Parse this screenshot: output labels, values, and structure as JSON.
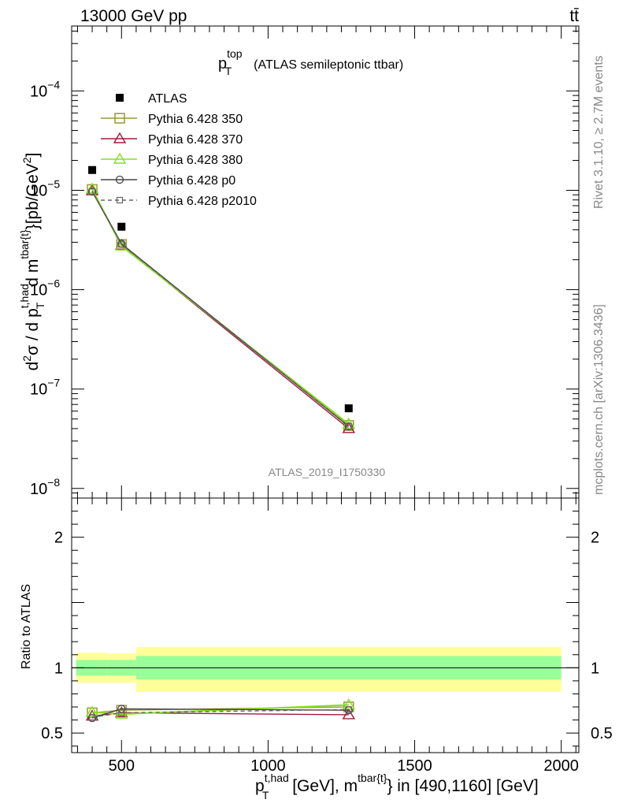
{
  "header": {
    "energy_label": "13000 GeV pp",
    "process_label": "tt̄"
  },
  "side": {
    "rivet": "Rivet 3.1.10, ≥ 2.7M events",
    "mcplots": "mcplots.cern.ch [arXiv:1306.3436]"
  },
  "analysis_id": "ATLAS_2019_I1750330",
  "colors": {
    "atlas": "#000000",
    "p350": "#999933",
    "p370": "#a01b39",
    "p380": "#86e01e",
    "p0": "#444444",
    "p2010": "#666666",
    "band_inner": "#99ff99",
    "band_outer": "#ffff99"
  },
  "chart_data": [
    {
      "type": "scatter",
      "panel": "main",
      "title": {
        "main": "p",
        "sup": "top",
        "sub": "T",
        "rest": "(ATLAS semileptonic ttbar)"
      },
      "ylabel": "d²σ / d p_T^{t,had} d m^{tbar{t}} [pb/GeV²]",
      "y_scale": "log",
      "xlim": [
        330,
        2060
      ],
      "ylim": [
        8e-09,
        0.00045
      ],
      "y_ticks": [
        {
          "label": "10",
          "exp": "−4",
          "value": 0.0001
        },
        {
          "label": "10",
          "exp": "−5",
          "value": 1e-05
        },
        {
          "label": "10",
          "exp": "−6",
          "value": 1e-06
        },
        {
          "label": "10",
          "exp": "−7",
          "value": 1e-07
        },
        {
          "label": "10",
          "exp": "−8",
          "value": 1e-08
        }
      ],
      "legend": {
        "placement": "top-left",
        "entries": [
          {
            "name": "ATLAS",
            "marker": "filled-square",
            "color_key": "atlas"
          },
          {
            "name": "Pythia 6.428 350",
            "marker": "open-square",
            "color_key": "p350"
          },
          {
            "name": "Pythia 6.428 370",
            "marker": "open-triangle",
            "color_key": "p370"
          },
          {
            "name": "Pythia 6.428 380",
            "marker": "open-triangle",
            "color_key": "p380"
          },
          {
            "name": "Pythia 6.428 p0",
            "marker": "open-circle",
            "color_key": "p0"
          },
          {
            "name": "Pythia 6.428 p2010",
            "marker": "open-square-small-dashed",
            "color_key": "p2010"
          }
        ]
      },
      "x": [
        400,
        500,
        1275
      ],
      "series": [
        {
          "name": "ATLAS",
          "values": [
            1.6e-05,
            4.3e-06,
            6.4e-08
          ]
        },
        {
          "name": "Pythia 6.428 350",
          "values": [
            1.02e-05,
            2.85e-06,
            4.3e-08
          ]
        },
        {
          "name": "Pythia 6.428 370",
          "values": [
            9.9e-06,
            2.8e-06,
            4e-08
          ]
        },
        {
          "name": "Pythia 6.428 380",
          "values": [
            1.03e-05,
            2.75e-06,
            4.45e-08
          ]
        },
        {
          "name": "Pythia 6.428 p0",
          "values": [
            9.7e-06,
            2.9e-06,
            4.2e-08
          ]
        },
        {
          "name": "Pythia 6.428 p2010",
          "values": [
            9.7e-06,
            2.85e-06,
            4.2e-08
          ]
        }
      ]
    },
    {
      "type": "line",
      "panel": "ratio",
      "ylabel": "Ratio to ATLAS",
      "xlabel": "p_T^{t,had} [GeV], m^{tbar{t}} in [490,1160] [GeV]",
      "xlim": [
        330,
        2060
      ],
      "ylim": [
        0.35,
        2.3
      ],
      "y_ticks": [
        {
          "label": "0.5",
          "value": 0.5
        },
        {
          "label": "1",
          "value": 1
        },
        {
          "label": "2",
          "value": 2
        }
      ],
      "x_ticks": [
        {
          "label": "500",
          "value": 500
        },
        {
          "label": "1000",
          "value": 1000
        },
        {
          "label": "1500",
          "value": 1500
        },
        {
          "label": "2000",
          "value": 2000
        }
      ],
      "bands": [
        {
          "x0": 345,
          "x1": 450,
          "inner": [
            0.94,
            1.06
          ],
          "outer": [
            0.885,
            1.115
          ]
        },
        {
          "x0": 450,
          "x1": 550,
          "inner": [
            0.94,
            1.06
          ],
          "outer": [
            0.885,
            1.11
          ]
        },
        {
          "x0": 550,
          "x1": 2000,
          "inner": [
            0.91,
            1.09
          ],
          "outer": [
            0.815,
            1.16
          ]
        }
      ],
      "x": [
        400,
        500,
        1275
      ],
      "series": [
        {
          "name": "Pythia 6.428 350",
          "values": [
            0.655,
            0.675,
            0.7
          ]
        },
        {
          "name": "Pythia 6.428 370",
          "values": [
            0.63,
            0.655,
            0.64
          ]
        },
        {
          "name": "Pythia 6.428 380",
          "values": [
            0.66,
            0.645,
            0.715
          ]
        },
        {
          "name": "Pythia 6.428 p0",
          "values": [
            0.615,
            0.685,
            0.675
          ]
        },
        {
          "name": "Pythia 6.428 p2010",
          "values": [
            0.62,
            0.655,
            0.68
          ]
        }
      ]
    }
  ]
}
